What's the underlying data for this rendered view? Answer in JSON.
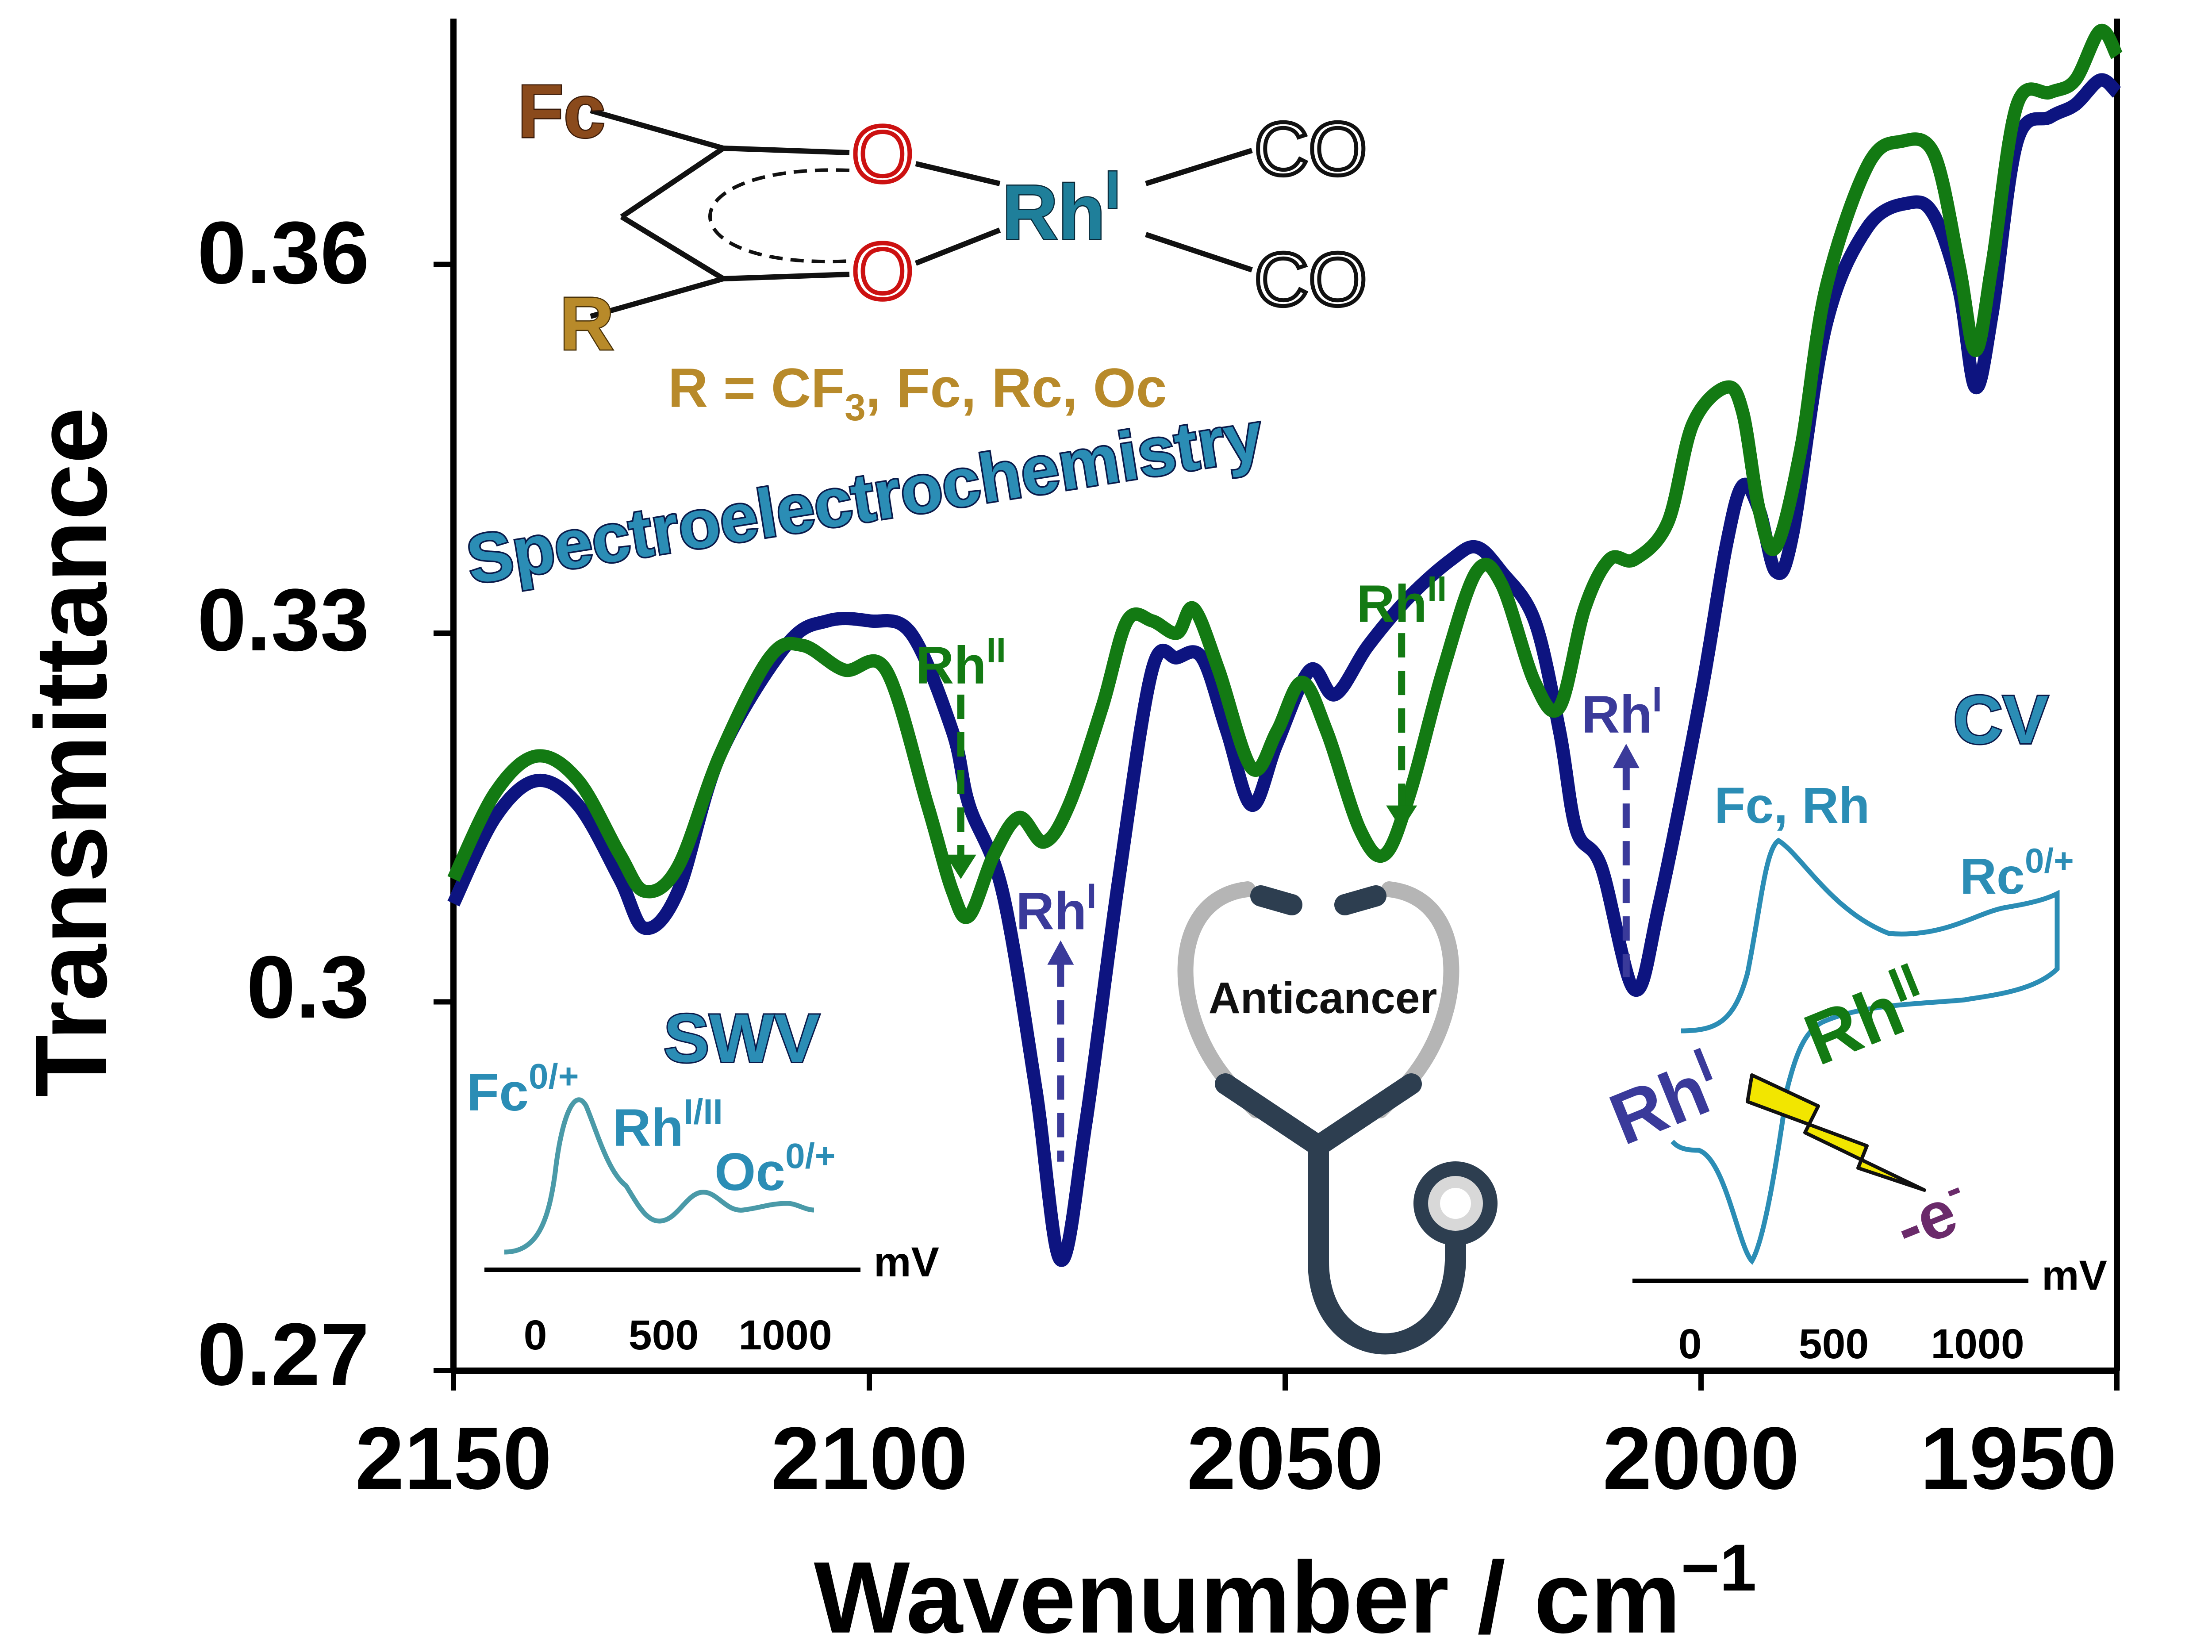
{
  "colors": {
    "blue": "#0d1480",
    "green": "#137a13",
    "teal": "#2b8db5",
    "fc_brown": "#8a4a1c",
    "r_gold": "#b88a2a",
    "o_red": "#cc1111",
    "rh_teal": "#1f7f9a",
    "purple": "#6a2a6a",
    "steth_dark": "#2d3e50",
    "steth_light": "#b5b5b5",
    "bolt": "#f2e600"
  },
  "axes": {
    "xlabel": "Wavenumber / cm",
    "xlabel_sup": "−1",
    "ylabel": "Transmittance",
    "xticks": [
      "2150",
      "2100",
      "2050",
      "2000",
      "1950"
    ],
    "yticks": [
      "0.36",
      "0.33",
      "0.3",
      "0.27"
    ]
  },
  "chart_data": {
    "type": "line",
    "xlabel": "Wavenumber / cm−1",
    "ylabel": "Transmittance",
    "xlim": [
      2150,
      1950
    ],
    "ylim": [
      0.27,
      0.38
    ],
    "x_reversed": true,
    "grid": false,
    "series": [
      {
        "color": "#0d1480",
        "points": [
          [
            2150,
            0.308
          ],
          [
            2145,
            0.315
          ],
          [
            2140,
            0.318
          ],
          [
            2135,
            0.316
          ],
          [
            2130,
            0.31
          ],
          [
            2127,
            0.306
          ],
          [
            2123,
            0.309
          ],
          [
            2118,
            0.32
          ],
          [
            2110,
            0.329
          ],
          [
            2105,
            0.331
          ],
          [
            2100,
            0.331
          ],
          [
            2095,
            0.33
          ],
          [
            2090,
            0.322
          ],
          [
            2088,
            0.316
          ],
          [
            2084,
            0.309
          ],
          [
            2080,
            0.293
          ],
          [
            2077,
            0.279
          ],
          [
            2074,
            0.29
          ],
          [
            2070,
            0.31
          ],
          [
            2066,
            0.327
          ],
          [
            2063,
            0.328
          ],
          [
            2060,
            0.328
          ],
          [
            2057,
            0.322
          ],
          [
            2054,
            0.316
          ],
          [
            2051,
            0.321
          ],
          [
            2047,
            0.327
          ],
          [
            2044,
            0.325
          ],
          [
            2040,
            0.329
          ],
          [
            2035,
            0.333
          ],
          [
            2030,
            0.336
          ],
          [
            2027,
            0.337
          ],
          [
            2024,
            0.335
          ],
          [
            2020,
            0.331
          ],
          [
            2017,
            0.322
          ],
          [
            2015,
            0.314
          ],
          [
            2012,
            0.311
          ],
          [
            2008,
            0.301
          ],
          [
            2005,
            0.308
          ],
          [
            2000,
            0.325
          ],
          [
            1997,
            0.337
          ],
          [
            1995,
            0.342
          ],
          [
            1993,
            0.34
          ],
          [
            1991,
            0.335
          ],
          [
            1989,
            0.338
          ],
          [
            1985,
            0.355
          ],
          [
            1980,
            0.363
          ],
          [
            1975,
            0.365
          ],
          [
            1972,
            0.364
          ],
          [
            1969,
            0.358
          ],
          [
            1967,
            0.35
          ],
          [
            1965,
            0.356
          ],
          [
            1962,
            0.37
          ],
          [
            1958,
            0.372
          ],
          [
            1955,
            0.373
          ],
          [
            1952,
            0.375
          ],
          [
            1950,
            0.374
          ]
        ]
      },
      {
        "color": "#137a13",
        "points": [
          [
            2150,
            0.31
          ],
          [
            2145,
            0.317
          ],
          [
            2140,
            0.32
          ],
          [
            2135,
            0.318
          ],
          [
            2130,
            0.312
          ],
          [
            2127,
            0.309
          ],
          [
            2123,
            0.311
          ],
          [
            2118,
            0.32
          ],
          [
            2112,
            0.328
          ],
          [
            2108,
            0.329
          ],
          [
            2103,
            0.327
          ],
          [
            2098,
            0.327
          ],
          [
            2093,
            0.316
          ],
          [
            2090,
            0.309
          ],
          [
            2088,
            0.307
          ],
          [
            2085,
            0.312
          ],
          [
            2082,
            0.315
          ],
          [
            2079,
            0.313
          ],
          [
            2076,
            0.316
          ],
          [
            2072,
            0.324
          ],
          [
            2069,
            0.331
          ],
          [
            2066,
            0.331
          ],
          [
            2063,
            0.33
          ],
          [
            2061,
            0.332
          ],
          [
            2058,
            0.327
          ],
          [
            2054,
            0.319
          ],
          [
            2051,
            0.322
          ],
          [
            2048,
            0.326
          ],
          [
            2045,
            0.322
          ],
          [
            2041,
            0.314
          ],
          [
            2038,
            0.312
          ],
          [
            2035,
            0.317
          ],
          [
            2031,
            0.327
          ],
          [
            2027,
            0.335
          ],
          [
            2024,
            0.334
          ],
          [
            2020,
            0.326
          ],
          [
            2017,
            0.324
          ],
          [
            2014,
            0.332
          ],
          [
            2011,
            0.336
          ],
          [
            2008,
            0.336
          ],
          [
            2004,
            0.339
          ],
          [
            2001,
            0.347
          ],
          [
            1997,
            0.35
          ],
          [
            1995,
            0.348
          ],
          [
            1993,
            0.34
          ],
          [
            1991,
            0.337
          ],
          [
            1988,
            0.345
          ],
          [
            1985,
            0.358
          ],
          [
            1980,
            0.368
          ],
          [
            1976,
            0.37
          ],
          [
            1972,
            0.369
          ],
          [
            1969,
            0.36
          ],
          [
            1967,
            0.353
          ],
          [
            1965,
            0.36
          ],
          [
            1962,
            0.373
          ],
          [
            1958,
            0.374
          ],
          [
            1955,
            0.375
          ],
          [
            1952,
            0.379
          ],
          [
            1950,
            0.377
          ]
        ]
      }
    ],
    "annotations": {
      "green_arrows": [
        {
          "x": 2089,
          "label": "Rh",
          "sup": "II",
          "y_top": 0.325,
          "y_bot": 0.31
        },
        {
          "x": 2036,
          "label": "Rh",
          "sup": "II",
          "y_top": 0.33,
          "y_bot": 0.314
        }
      ],
      "blue_arrows": [
        {
          "x": 2077,
          "label": "Rh",
          "sup": "I",
          "y_top": 0.305,
          "y_bot": 0.287
        },
        {
          "x": 2009,
          "label": "Rh",
          "sup": "I",
          "y_top": 0.321,
          "y_bot": 0.302
        }
      ]
    }
  },
  "texts": {
    "title_curve": "Spectroelectrochemistry",
    "fc": "Fc",
    "r": "R",
    "o": "O",
    "rh": "Rh",
    "rh_sup": "I",
    "co": "CO",
    "r_def": "R = CF",
    "r_def_sub": "3",
    "r_def_rest": ", Fc, Rc, Oc",
    "swv": "SWV",
    "cv": "CV",
    "anticancer": "Anticancer",
    "swv_fc": "Fc",
    "swv_fc_sup": "0/+",
    "swv_rh": "Rh",
    "swv_rh_sup": "I/II",
    "swv_oc": "Oc",
    "swv_oc_sup": "0/+",
    "cv_fcrh": "Fc, Rh",
    "cv_rc": "Rc",
    "cv_rc_sup": "0/+",
    "cv_rhii": "Rh",
    "cv_rhii_sup": "II",
    "cv_rhi": "Rh",
    "cv_rhi_sup": "I",
    "electron": "-e",
    "electron_sup": "-",
    "mv": "mV",
    "inset_ticks": [
      "0",
      "500",
      "1000"
    ]
  }
}
